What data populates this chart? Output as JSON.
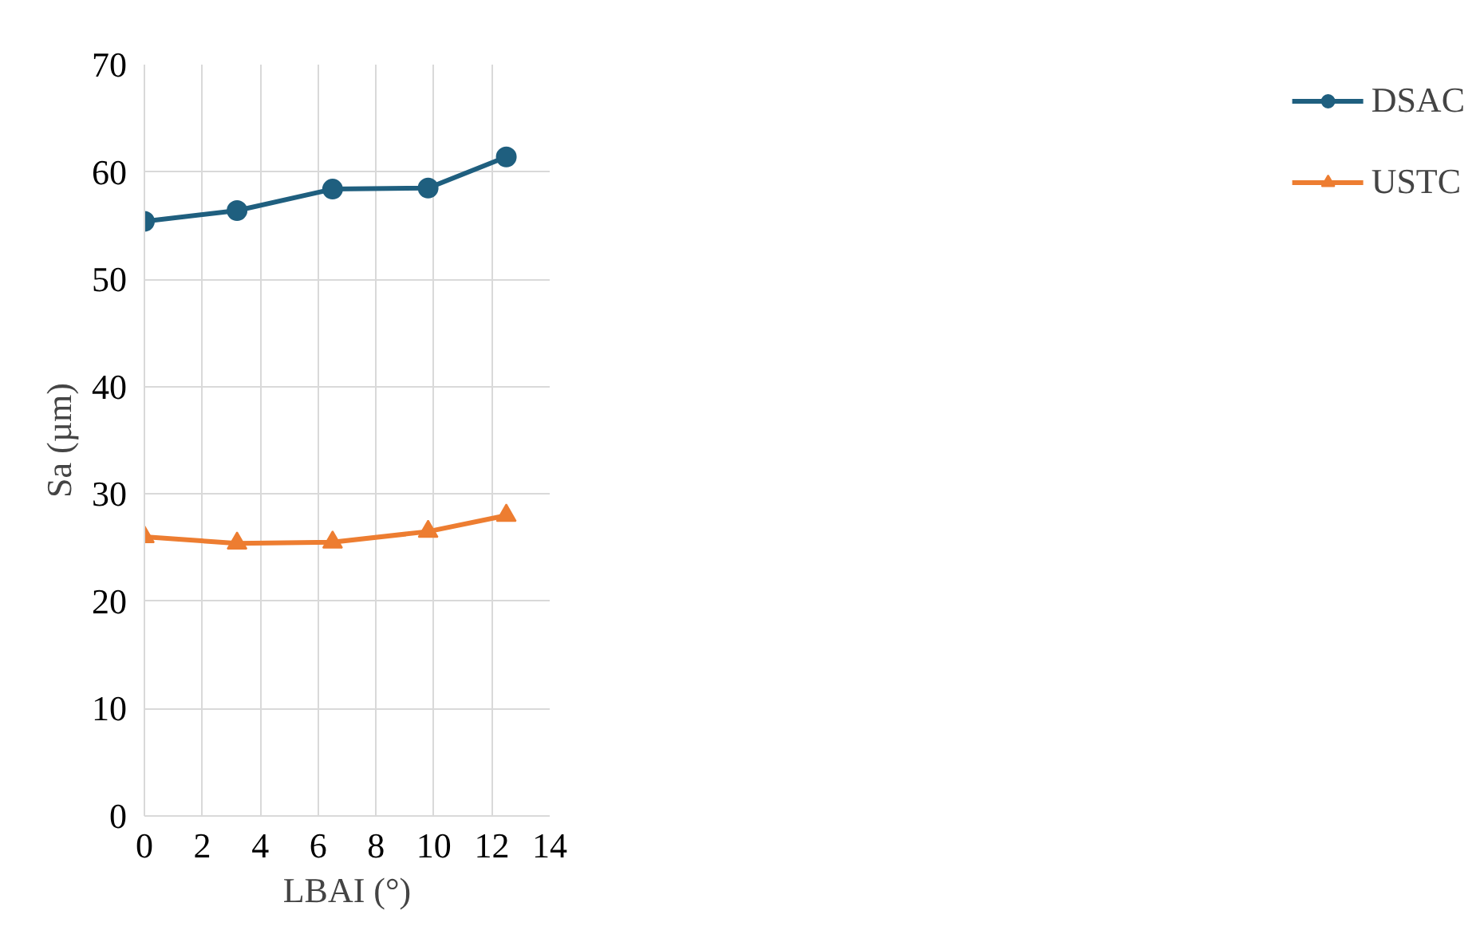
{
  "chart_data": {
    "type": "line",
    "xlabel": "LBAI (°)",
    "ylabel": "Sa (µm)",
    "x": [
      0,
      3.2,
      6.5,
      9.8,
      12.5
    ],
    "series": [
      {
        "name": "DSAC",
        "color": "#1f5f7f",
        "marker": "circle",
        "values": [
          55.4,
          56.4,
          58.4,
          58.5,
          61.4
        ]
      },
      {
        "name": "USTC",
        "color": "#ed7d31",
        "marker": "triangle",
        "values": [
          26.0,
          25.4,
          25.5,
          26.5,
          28.0
        ]
      }
    ],
    "xlim": [
      0,
      14
    ],
    "xticks": [
      0,
      2,
      4,
      6,
      8,
      10,
      12,
      14
    ],
    "ylim": [
      0,
      70
    ],
    "yticks": [
      0,
      10,
      20,
      30,
      40,
      50,
      60,
      70
    ],
    "grid": true,
    "legend": "right",
    "line_style": "solid"
  }
}
